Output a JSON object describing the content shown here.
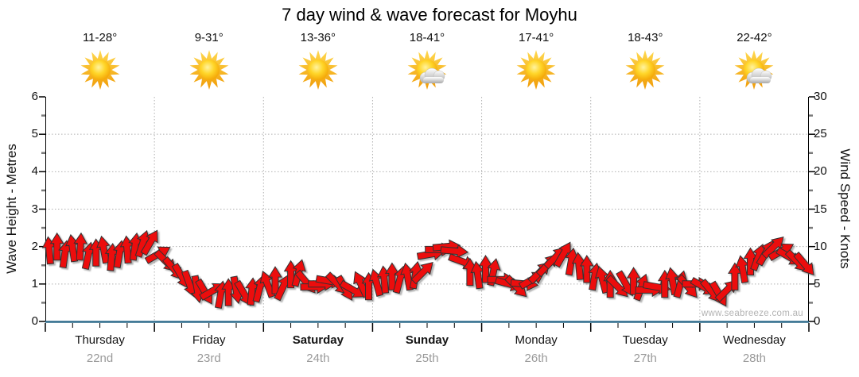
{
  "title": "7 day wind & wave forecast for Moyhu",
  "watermark": "www.seabreeze.com.au",
  "colors": {
    "arrow_fill": "#ec0c0c",
    "arrow_stroke": "#333333",
    "baseline": "#2e6b8c",
    "grid": "#b0b0b0",
    "axis": "#000000",
    "minor_tick": "#7a7a7a",
    "date_label": "#9a9a9a",
    "sun_ray": "#f09b06",
    "sun_core": "#ffd629",
    "cloud": "#a8a8a8"
  },
  "left_axis": {
    "label": "Wave Height - Metres",
    "min": 0,
    "max": 6,
    "major_step": 1,
    "minor_step": 0.5,
    "ticks": [
      "0",
      "1",
      "2",
      "3",
      "4",
      "5",
      "6"
    ]
  },
  "right_axis": {
    "label": "Wind Speed - Knots",
    "min": 0,
    "max": 30,
    "major_step": 5,
    "minor_step": 2.5,
    "ticks": [
      "0",
      "5",
      "10",
      "15",
      "20",
      "25",
      "30"
    ]
  },
  "days": [
    {
      "name": "Thursday",
      "date": "22nd",
      "temp": "11-28°",
      "icon": "sun-icon",
      "weekend": false
    },
    {
      "name": "Friday",
      "date": "23rd",
      "temp": "9-31°",
      "icon": "sun-icon",
      "weekend": false
    },
    {
      "name": "Saturday",
      "date": "24th",
      "temp": "13-36°",
      "icon": "sun-icon",
      "weekend": true
    },
    {
      "name": "Sunday",
      "date": "25th",
      "temp": "18-41°",
      "icon": "sun-cloud-icon",
      "weekend": true
    },
    {
      "name": "Monday",
      "date": "26th",
      "temp": "17-41°",
      "icon": "sun-icon",
      "weekend": false
    },
    {
      "name": "Tuesday",
      "date": "27th",
      "temp": "18-43°",
      "icon": "sun-icon",
      "weekend": false
    },
    {
      "name": "Wednesday",
      "date": "28th",
      "temp": "22-42°",
      "icon": "sun-cloud-icon",
      "weekend": false
    }
  ],
  "chart_data": {
    "type": "wind-arrow-series",
    "title": "7 day wind & wave forecast for Moyhu",
    "x_categories": [
      "Thursday 22nd",
      "Friday 23rd",
      "Saturday 24th",
      "Sunday 25th",
      "Monday 26th",
      "Tuesday 27th",
      "Wednesday 28th"
    ],
    "left_axis": {
      "label": "Wave Height - Metres",
      "range": [
        0,
        6
      ],
      "grid": true
    },
    "right_axis": {
      "label": "Wind Speed - Knots",
      "range": [
        0,
        30
      ],
      "grid": true
    },
    "arrows_per_day": 14,
    "arrow_value_note": "each arrow = [wind_speed_knots, direction_deg_clockwise_from_north]",
    "arrows": [
      [
        9.5,
        -5
      ],
      [
        10,
        0
      ],
      [
        9,
        8
      ],
      [
        9.8,
        -8
      ],
      [
        10,
        3
      ],
      [
        8.8,
        12
      ],
      [
        9.2,
        0
      ],
      [
        9.6,
        -10
      ],
      [
        8.6,
        5
      ],
      [
        9,
        10
      ],
      [
        9.6,
        -4
      ],
      [
        10,
        8
      ],
      [
        10.4,
        18
      ],
      [
        10.6,
        30
      ],
      [
        9,
        60
      ],
      [
        8,
        135
      ],
      [
        7,
        140
      ],
      [
        6,
        150
      ],
      [
        5,
        160
      ],
      [
        4.3,
        170
      ],
      [
        3.9,
        150
      ],
      [
        4.1,
        60
      ],
      [
        3.6,
        10
      ],
      [
        3.9,
        0
      ],
      [
        4.2,
        170
      ],
      [
        3.7,
        150
      ],
      [
        4,
        5
      ],
      [
        4.4,
        15
      ],
      [
        5,
        -20
      ],
      [
        5.5,
        0
      ],
      [
        4.6,
        25
      ],
      [
        6.3,
        0
      ],
      [
        6.5,
        15
      ],
      [
        5.2,
        140
      ],
      [
        4.6,
        90
      ],
      [
        5,
        90
      ],
      [
        5.4,
        100
      ],
      [
        5,
        135
      ],
      [
        4.4,
        150
      ],
      [
        4.2,
        120
      ],
      [
        5,
        -25
      ],
      [
        4.7,
        0
      ],
      [
        5.2,
        -15
      ],
      [
        5.6,
        -5
      ],
      [
        6,
        0
      ],
      [
        5.6,
        15
      ],
      [
        6,
        -10
      ],
      [
        6.2,
        10
      ],
      [
        6.6,
        45
      ],
      [
        9,
        80
      ],
      [
        9.6,
        90
      ],
      [
        10,
        85
      ],
      [
        9.4,
        95
      ],
      [
        8,
        110
      ],
      [
        6.6,
        0
      ],
      [
        6.2,
        -8
      ],
      [
        7,
        0
      ],
      [
        6.6,
        12
      ],
      [
        5.6,
        90
      ],
      [
        5,
        105
      ],
      [
        4.6,
        135
      ],
      [
        5,
        95
      ],
      [
        5.6,
        60
      ],
      [
        6.6,
        45
      ],
      [
        7.6,
        42
      ],
      [
        8.6,
        45
      ],
      [
        9,
        30
      ],
      [
        8,
        10
      ],
      [
        7.4,
        -5
      ],
      [
        7,
        0
      ],
      [
        6,
        10
      ],
      [
        5.6,
        -15
      ],
      [
        5,
        0
      ],
      [
        4.6,
        135
      ],
      [
        5,
        150
      ],
      [
        5.4,
        0
      ],
      [
        4.6,
        20
      ],
      [
        4.2,
        90
      ],
      [
        4.6,
        100
      ],
      [
        5,
        0
      ],
      [
        5.4,
        -10
      ],
      [
        5,
        15
      ],
      [
        4.6,
        140
      ],
      [
        5,
        90
      ],
      [
        4.6,
        120
      ],
      [
        4,
        140
      ],
      [
        3.6,
        150
      ],
      [
        4.2,
        45
      ],
      [
        6,
        0
      ],
      [
        7,
        -10
      ],
      [
        8,
        0
      ],
      [
        8.6,
        20
      ],
      [
        9.2,
        30
      ],
      [
        10,
        45
      ],
      [
        9.4,
        60
      ],
      [
        8.6,
        120
      ],
      [
        8,
        135
      ],
      [
        7.6,
        140
      ]
    ]
  }
}
